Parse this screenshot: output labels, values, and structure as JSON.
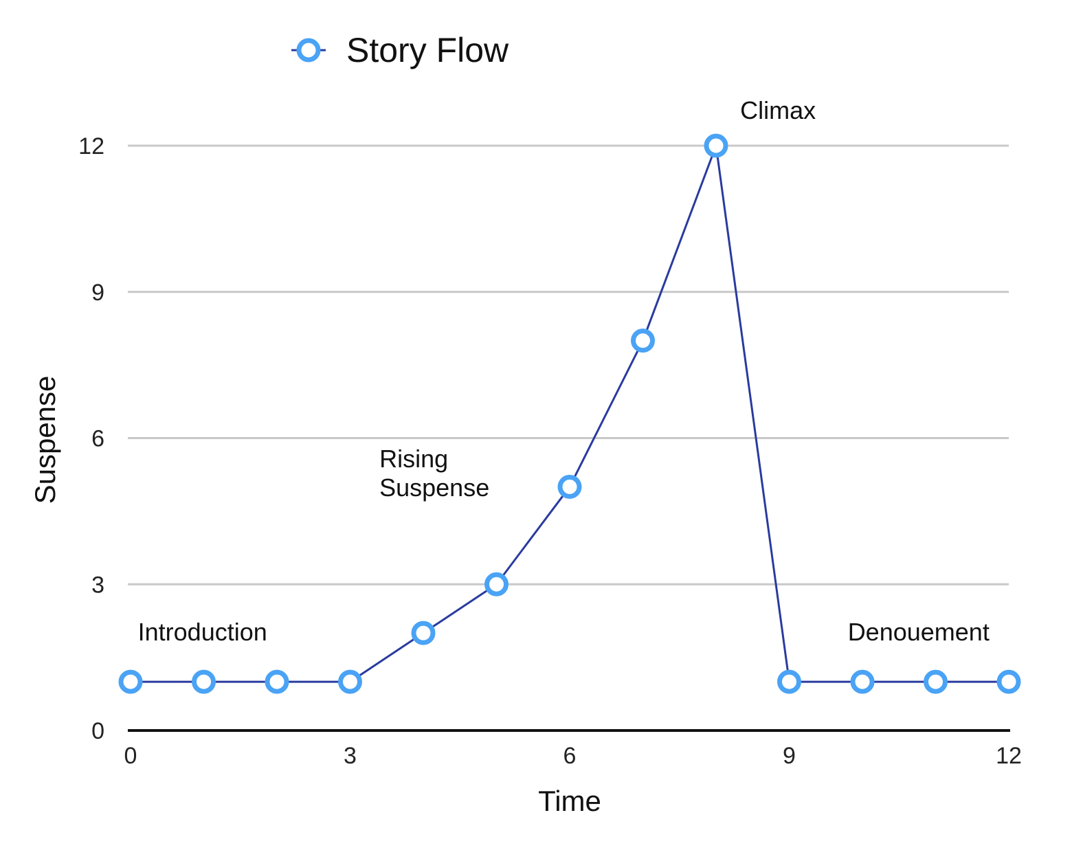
{
  "chart_data": {
    "type": "line",
    "title": "",
    "xlabel": "Time",
    "ylabel": "Suspense",
    "xlim": [
      0,
      12
    ],
    "ylim": [
      0,
      12
    ],
    "xticks": [
      0,
      3,
      6,
      9,
      12
    ],
    "yticks": [
      0,
      3,
      6,
      9,
      12
    ],
    "grid": true,
    "legend": {
      "position": "top",
      "entries": [
        "Story Flow"
      ]
    },
    "series": [
      {
        "name": "Story Flow",
        "x": [
          0,
          1,
          2,
          3,
          4,
          5,
          6,
          7,
          8,
          9,
          10,
          11,
          12
        ],
        "y": [
          1,
          1,
          1,
          1,
          2,
          3,
          5,
          8,
          12,
          1,
          1,
          1,
          1
        ],
        "line_color": "#2a3b9e",
        "marker_color": "#4aa3f5"
      }
    ],
    "annotations": [
      {
        "lines": [
          "Introduction"
        ],
        "x": 0.1,
        "y": 1.85
      },
      {
        "lines": [
          "Rising",
          "Suspense"
        ],
        "x": 3.4,
        "y": 5.4
      },
      {
        "lines": [
          "Climax"
        ],
        "x": 8.33,
        "y": 12.55
      },
      {
        "lines": [
          "Denouement"
        ],
        "x": 9.8,
        "y": 1.85
      }
    ],
    "colors": {
      "grid": "#c8c8c8",
      "axis": "#111111"
    }
  }
}
